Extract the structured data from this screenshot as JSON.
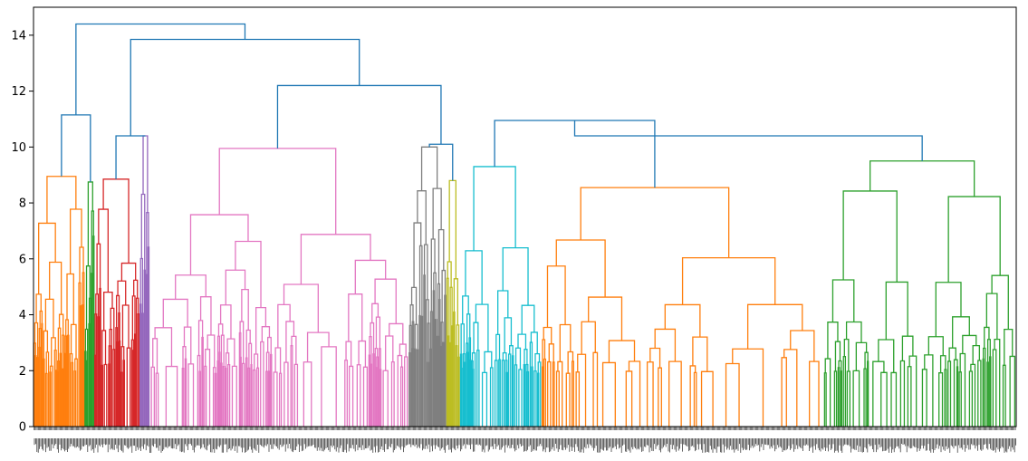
{
  "chart_data": {
    "type": "dendrogram",
    "title": "",
    "xlabel": "",
    "ylabel": "",
    "ylim": [
      0,
      15
    ],
    "yticks": [
      0,
      2,
      4,
      6,
      8,
      10,
      12,
      14
    ],
    "grid": false,
    "legend": "none",
    "x_tick_labels": "dense unreadable leaf-index labels along the x axis",
    "link_color_above_threshold": "#1f77b4",
    "clusters": [
      {
        "color": "#ff7f0e",
        "width_fraction": 0.052,
        "merge_height": 8.95
      },
      {
        "color": "#2ca02c",
        "width_fraction": 0.01,
        "merge_height": 8.75
      },
      {
        "color": "#d62728",
        "width_fraction": 0.046,
        "merge_height": 8.85
      },
      {
        "color": "#9467bd",
        "width_fraction": 0.01,
        "merge_height": 10.4
      },
      {
        "color": "#e377c2",
        "width_fraction": 0.264,
        "merge_height": 9.95
      },
      {
        "color": "#7f7f7f",
        "width_fraction": 0.038,
        "merge_height": 10.0
      },
      {
        "color": "#bcbd22",
        "width_fraction": 0.014,
        "merge_height": 8.8
      },
      {
        "color": "#17becf",
        "width_fraction": 0.083,
        "merge_height": 9.3
      },
      {
        "color": "#ff7f0e",
        "width_fraction": 0.287,
        "merge_height": 8.55
      },
      {
        "color": "#2ca02c",
        "width_fraction": 0.196,
        "merge_height": 9.5
      }
    ],
    "upper_links": [
      {
        "left": 0,
        "right": 1,
        "height": 11.15
      },
      {
        "left": 2,
        "right": 3,
        "height": 10.4
      },
      {
        "left": 5,
        "right": 6,
        "height": 10.1
      },
      {
        "left": 7,
        "right": 8,
        "height": 10.95
      },
      {
        "left": 8,
        "right": 9,
        "height": 10.4
      },
      {
        "left": 4,
        "right": 5,
        "height": 12.2
      },
      {
        "left": 3,
        "right": 4,
        "height": 13.85
      },
      {
        "left": 0,
        "right": 3,
        "height": 14.4
      }
    ]
  }
}
